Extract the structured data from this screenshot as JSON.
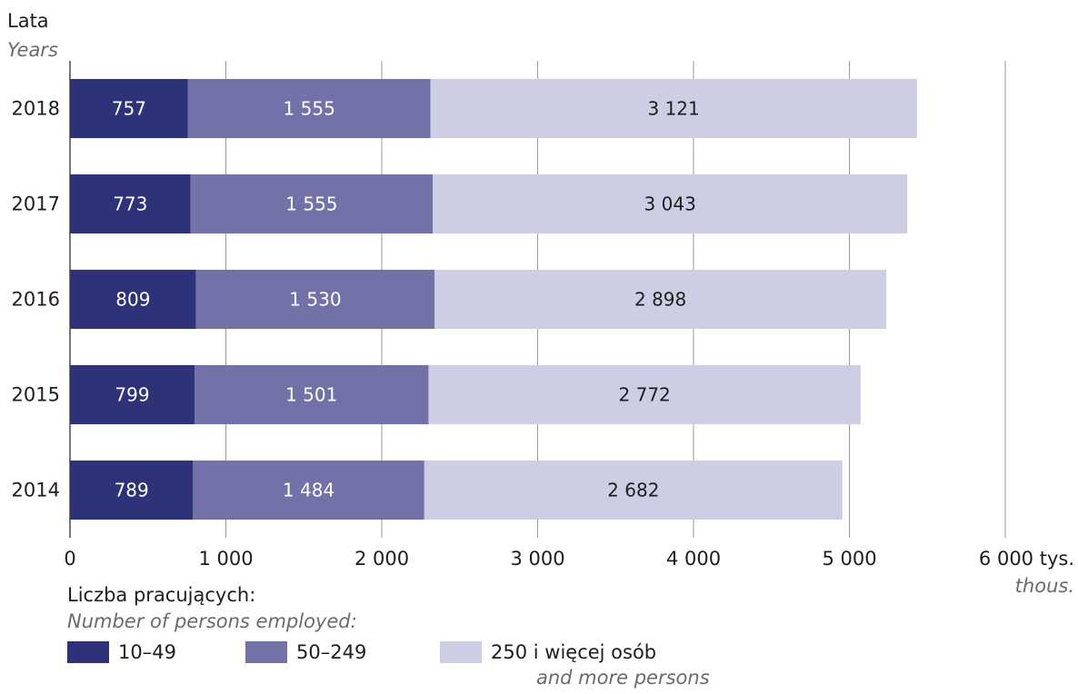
{
  "chart_data": {
    "type": "bar",
    "orientation": "horizontal",
    "stacked": true,
    "ylabel": "Lata",
    "ylabel_en": "Years",
    "xunit": "tys.",
    "xunit_en": "thous.",
    "categories": [
      "2018",
      "2017",
      "2016",
      "2015",
      "2014"
    ],
    "series": [
      {
        "name": "10–49",
        "color": "#2e3278",
        "label_color": "#ffffff",
        "values": [
          757,
          773,
          809,
          799,
          789
        ],
        "labels": [
          "757",
          "773",
          "809",
          "799",
          "789"
        ]
      },
      {
        "name": "50–249",
        "color": "#7271a8",
        "label_color": "#ffffff",
        "values": [
          1555,
          1555,
          1530,
          1501,
          1484
        ],
        "labels": [
          "1 555",
          "1 555",
          "1 530",
          "1 501",
          "1 484"
        ]
      },
      {
        "name": "250 i więcej osób",
        "name_en": "and more persons",
        "color": "#cdcde3",
        "label_color": "#1e1e1e",
        "values": [
          3121,
          3043,
          2898,
          2772,
          2682
        ],
        "labels": [
          "3 121",
          "3 043",
          "2 898",
          "2 772",
          "2 682"
        ]
      }
    ],
    "xlim": [
      0,
      6000
    ],
    "xticks": [
      0,
      1000,
      2000,
      3000,
      4000,
      5000,
      6000
    ],
    "xtick_labels": [
      "0",
      "1 000",
      "2 000",
      "3 000",
      "4 000",
      "5 000",
      "6 000"
    ],
    "grid": true,
    "legend_position": "bottom",
    "legend_title": "Liczba pracujących:",
    "legend_title_en": "Number of persons employed:"
  }
}
